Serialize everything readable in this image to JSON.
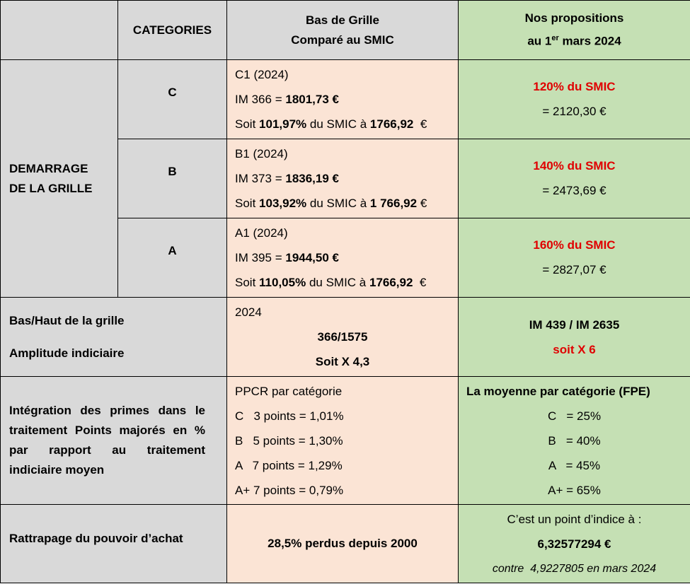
{
  "header": {
    "col2": "CATEGORIES",
    "col3_line1": "Bas de Grille",
    "col3_line2": "Comparé au SMIC",
    "col4_line1": "Nos propositions",
    "col4_line2_pre": "au 1",
    "col4_line2_sup": "er",
    "col4_line2_post": " mars 2024"
  },
  "demarrage": {
    "label_line1": "DEMARRAGE",
    "label_line2": "DE LA GRILLE",
    "rows": [
      {
        "category": "C",
        "grade": "C1 (2024)",
        "im_prefix": "IM 366 = ",
        "im_amount": "1801,73 €",
        "soit_prefix": "Soit ",
        "soit_pct": "101,97%",
        "soit_mid": " du SMIC à ",
        "soit_smic": "1766,92",
        "soit_suffix": "  €",
        "proposal_pct": "120% du SMIC",
        "proposal_amount": "= 2120,30 €"
      },
      {
        "category": "B",
        "grade": "B1 (2024)",
        "im_prefix": "IM 373 = ",
        "im_amount": "1836,19 €",
        "soit_prefix": "Soit ",
        "soit_pct": "103,92%",
        "soit_mid": " du SMIC à ",
        "soit_smic": "1 766,92",
        "soit_suffix": " €",
        "proposal_pct": "140% du SMIC",
        "proposal_amount": "= 2473,69 €"
      },
      {
        "category": "A",
        "grade": "A1 (2024)",
        "im_prefix": "IM 395 = ",
        "im_amount": "1944,50 €",
        "soit_prefix": "Soit ",
        "soit_pct": "110,05%",
        "soit_mid": " du SMIC à ",
        "soit_smic": "1766,92",
        "soit_suffix": "  €",
        "proposal_pct": "160% du SMIC",
        "proposal_amount": "= 2827,07 €"
      }
    ]
  },
  "amplitude": {
    "label_line1": "Bas/Haut de la grille",
    "label_line2": "Amplitude indiciaire",
    "year": "2024",
    "range": "366/1575",
    "factor": "Soit X 4,3",
    "proposal_range": "IM 439 / IM 2635",
    "proposal_factor": "soit X 6"
  },
  "primes": {
    "label_lines": [
      "Intégration des primes dans le",
      "traitement Points majorés en %",
      "par rapport au traitement",
      "indiciaire moyen"
    ],
    "ppcr_title": "PPCR par catégorie",
    "ppcr_items": [
      "C   3 points = 1,01%",
      "B   5 points = 1,30%",
      "A   7 points = 1,29%",
      "A+ 7 points = 0,79%"
    ],
    "fpe_title": "La moyenne par catégorie (FPE)",
    "fpe_items": [
      "C   = 25%",
      "B   = 40%",
      "A   = 45%",
      "A+ = 65%"
    ]
  },
  "rattrapage": {
    "label": "Rattrapage du pouvoir d’achat",
    "lost": "28,5% perdus depuis 2000",
    "point_intro": "C’est un point d’indice à :",
    "point_value": "6,32577294 €",
    "contre": "contre  4,9227805 en mars 2024"
  }
}
